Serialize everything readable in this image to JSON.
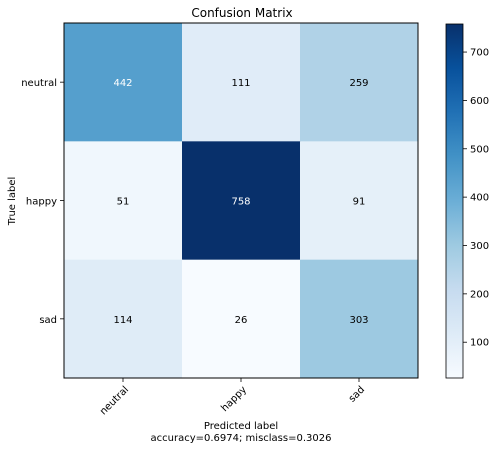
{
  "chart_data": {
    "type": "heatmap",
    "title": "Confusion Matrix",
    "xlabel": "Predicted label",
    "xlabel_sub": "accuracy=0.6974; misclass=0.3026",
    "ylabel": "True label",
    "x_categories": [
      "neutral",
      "happy",
      "sad"
    ],
    "y_categories": [
      "neutral",
      "happy",
      "sad"
    ],
    "values": [
      [
        442,
        111,
        259
      ],
      [
        51,
        758,
        91
      ],
      [
        114,
        26,
        303
      ]
    ],
    "colormap": "Blues",
    "colorbar": {
      "min": 26,
      "max": 758,
      "ticks": [
        100,
        200,
        300,
        400,
        500,
        600,
        700
      ]
    }
  }
}
